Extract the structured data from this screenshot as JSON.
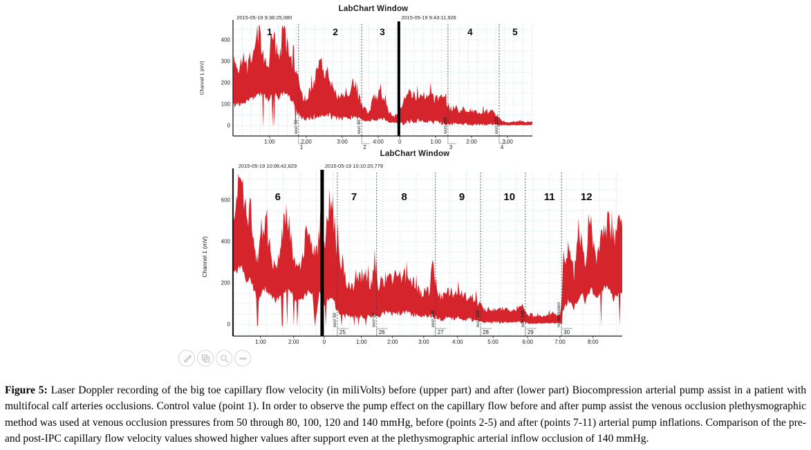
{
  "caption": {
    "label": "Figure 5:",
    "text": " Laser Doppler recording of the big toe capillary flow velocity (in miliVolts) before (upper part) and after (lower part) Biocompression arterial pump assist in a patient with multifocal calf arteries occlusions. Control value (point 1). In order to observe the pump effect on the capillary flow before and after pump assist the venous occlusion plethysmographic method was used at venous occlusion pressures  from 50 through 80, 100, 120 and 140 mmHg, before (points 2-5) and after (points 7-11) arterial pump inflations. Comparison of the pre- and post-IPC capillary flow velocity values showed higher values after support even at the plethysmographic arterial inflow occlusion of 140 mmHg."
  },
  "figure_tools": {
    "icons": [
      "edit-pencil-icon",
      "copy-figure-icon",
      "zoom-magnifier-icon",
      "more-options-icon"
    ]
  },
  "colors": {
    "trace": "#d5242c",
    "grid": "#b7dfe9",
    "divider": "#000000"
  },
  "chart_data": [
    {
      "type": "area",
      "window_title": "LabChart Window",
      "ylabel": "Channel 1 (mV)",
      "yticks": [
        0,
        100,
        200,
        300,
        400
      ],
      "ylim": [
        -48,
        474
      ],
      "grid": true,
      "timestamps": [
        {
          "x": 0.012,
          "text": "2015-05-19 9:38:25,080"
        },
        {
          "x": 0.562,
          "text": "2015-05-19 9:43:11,926"
        }
      ],
      "divider_x": 0.554,
      "xticks": [
        {
          "x": 0.122,
          "label": "1:00"
        },
        {
          "x": 0.245,
          "label": "2:00"
        },
        {
          "x": 0.365,
          "label": "3:00"
        },
        {
          "x": 0.485,
          "label": "4:00"
        },
        {
          "x": 0.557,
          "label": "0"
        },
        {
          "x": 0.677,
          "label": "1:00"
        },
        {
          "x": 0.797,
          "label": "2:00"
        },
        {
          "x": 0.917,
          "label": "3:00"
        }
      ],
      "events": [
        {
          "x": 0.219,
          "label": "occl 50",
          "marker": "1"
        },
        {
          "x": 0.43,
          "label": "occl 80",
          "marker": "2"
        },
        {
          "x": 0.718,
          "label": "occl 100",
          "marker": "3"
        },
        {
          "x": 0.889,
          "label": "occl 120",
          "marker": "4"
        }
      ],
      "sections": [
        {
          "x": 0.122,
          "label": "1"
        },
        {
          "x": 0.342,
          "label": "2"
        },
        {
          "x": 0.499,
          "label": "3"
        },
        {
          "x": 0.792,
          "label": "4"
        },
        {
          "x": 0.942,
          "label": "5"
        }
      ],
      "envelope": [
        [
          0.0,
          240,
          95
        ],
        [
          0.018,
          275,
          100
        ],
        [
          0.035,
          310,
          110
        ],
        [
          0.048,
          265,
          115
        ],
        [
          0.065,
          350,
          125
        ],
        [
          0.081,
          450,
          140
        ],
        [
          0.095,
          380,
          145
        ],
        [
          0.106,
          320,
          135
        ],
        [
          0.12,
          300,
          120
        ],
        [
          0.132,
          445,
          150
        ],
        [
          0.143,
          350,
          140
        ],
        [
          0.155,
          290,
          130
        ],
        [
          0.166,
          460,
          150
        ],
        [
          0.178,
          390,
          155
        ],
        [
          0.192,
          310,
          125
        ],
        [
          0.206,
          285,
          95
        ],
        [
          0.217,
          245,
          60
        ],
        [
          0.226,
          155,
          40
        ],
        [
          0.24,
          120,
          30
        ],
        [
          0.254,
          140,
          35
        ],
        [
          0.268,
          195,
          40
        ],
        [
          0.282,
          245,
          45
        ],
        [
          0.293,
          330,
          50
        ],
        [
          0.305,
          255,
          45
        ],
        [
          0.319,
          265,
          50
        ],
        [
          0.333,
          160,
          40
        ],
        [
          0.346,
          140,
          35
        ],
        [
          0.36,
          130,
          30
        ],
        [
          0.374,
          150,
          35
        ],
        [
          0.39,
          160,
          38
        ],
        [
          0.404,
          210,
          40
        ],
        [
          0.418,
          140,
          30
        ],
        [
          0.434,
          90,
          25
        ],
        [
          0.453,
          60,
          20
        ],
        [
          0.471,
          130,
          28
        ],
        [
          0.487,
          150,
          32
        ],
        [
          0.506,
          115,
          28
        ],
        [
          0.522,
          60,
          18
        ],
        [
          0.54,
          45,
          14
        ],
        [
          0.563,
          95,
          10
        ],
        [
          0.575,
          130,
          15
        ],
        [
          0.591,
          150,
          18
        ],
        [
          0.61,
          140,
          22
        ],
        [
          0.628,
          150,
          22
        ],
        [
          0.644,
          130,
          18
        ],
        [
          0.66,
          140,
          18
        ],
        [
          0.679,
          120,
          14
        ],
        [
          0.697,
          130,
          14
        ],
        [
          0.714,
          108,
          10
        ],
        [
          0.725,
          80,
          8
        ],
        [
          0.739,
          92,
          9
        ],
        [
          0.755,
          75,
          8
        ],
        [
          0.771,
          82,
          8
        ],
        [
          0.79,
          70,
          6
        ],
        [
          0.808,
          76,
          6
        ],
        [
          0.827,
          60,
          5
        ],
        [
          0.845,
          66,
          5
        ],
        [
          0.864,
          70,
          5
        ],
        [
          0.877,
          55,
          4
        ],
        [
          0.896,
          25,
          2
        ],
        [
          0.914,
          15,
          2
        ],
        [
          0.933,
          18,
          2
        ],
        [
          0.956,
          22,
          3
        ],
        [
          0.979,
          17,
          2
        ],
        [
          1.0,
          20,
          3
        ]
      ]
    },
    {
      "type": "area",
      "window_title": "LabChart Window",
      "ylabel": "Channel 1 (mV)",
      "yticks": [
        0,
        200,
        400,
        600
      ],
      "ylim": [
        -57,
        733
      ],
      "grid": true,
      "timestamps": [
        {
          "x": 0.014,
          "text": "2015-05-19 10:06:42,829"
        },
        {
          "x": 0.236,
          "text": "2015-05-19 10:10:20,779"
        }
      ],
      "divider_x": 0.229,
      "xticks": [
        {
          "x": 0.071,
          "label": "1:00"
        },
        {
          "x": 0.156,
          "label": "2:00"
        },
        {
          "x": 0.2345,
          "label": "0"
        },
        {
          "x": 0.33,
          "label": "1:00"
        },
        {
          "x": 0.41,
          "label": "2:00"
        },
        {
          "x": 0.49,
          "label": "3:00"
        },
        {
          "x": 0.577,
          "label": "4:00"
        },
        {
          "x": 0.668,
          "label": "5:00"
        },
        {
          "x": 0.757,
          "label": "6:00"
        },
        {
          "x": 0.84,
          "label": "7:00"
        },
        {
          "x": 0.925,
          "label": "8:00"
        }
      ],
      "events": [
        {
          "x": 0.268,
          "label": "occl 50",
          "marker": "25"
        },
        {
          "x": 0.369,
          "label": "occl 80",
          "marker": "26"
        },
        {
          "x": 0.52,
          "label": "occl 100",
          "marker": "27"
        },
        {
          "x": 0.636,
          "label": "occl 120",
          "marker": "28"
        },
        {
          "x": 0.751,
          "label": "occl 140",
          "marker": "29"
        },
        {
          "x": 0.844,
          "label": "no occlusion",
          "marker": "30"
        }
      ],
      "sections": [
        {
          "x": 0.115,
          "label": "6"
        },
        {
          "x": 0.311,
          "label": "7"
        },
        {
          "x": 0.44,
          "label": "8"
        },
        {
          "x": 0.588,
          "label": "9"
        },
        {
          "x": 0.71,
          "label": "10"
        },
        {
          "x": 0.813,
          "label": "11"
        },
        {
          "x": 0.908,
          "label": "12"
        }
      ],
      "envelope": [
        [
          0.0,
          560,
          240
        ],
        [
          0.011,
          600,
          260
        ],
        [
          0.02,
          660,
          280
        ],
        [
          0.028,
          610,
          250
        ],
        [
          0.037,
          480,
          200
        ],
        [
          0.046,
          560,
          220
        ],
        [
          0.055,
          400,
          160
        ],
        [
          0.062,
          310,
          120
        ],
        [
          0.064,
          290,
          -12
        ],
        [
          0.066,
          320,
          120
        ],
        [
          0.073,
          430,
          150
        ],
        [
          0.083,
          480,
          170
        ],
        [
          0.092,
          400,
          150
        ],
        [
          0.101,
          310,
          130
        ],
        [
          0.11,
          255,
          115
        ],
        [
          0.121,
          350,
          130
        ],
        [
          0.13,
          470,
          150
        ],
        [
          0.139,
          525,
          170
        ],
        [
          0.147,
          430,
          160
        ],
        [
          0.156,
          330,
          130
        ],
        [
          0.163,
          260,
          100
        ],
        [
          0.165,
          250,
          -12
        ],
        [
          0.168,
          300,
          110
        ],
        [
          0.176,
          300,
          115
        ],
        [
          0.185,
          420,
          140
        ],
        [
          0.195,
          465,
          160
        ],
        [
          0.204,
          380,
          140
        ],
        [
          0.211,
          300,
          -10
        ],
        [
          0.222,
          420,
          150
        ],
        [
          0.234,
          350,
          90
        ],
        [
          0.243,
          520,
          120
        ],
        [
          0.25,
          610,
          140
        ],
        [
          0.259,
          520,
          110
        ],
        [
          0.266,
          360,
          70
        ],
        [
          0.274,
          340,
          55
        ],
        [
          0.281,
          300,
          45
        ],
        [
          0.288,
          230,
          40
        ],
        [
          0.297,
          180,
          35
        ],
        [
          0.307,
          185,
          32
        ],
        [
          0.318,
          200,
          35
        ],
        [
          0.329,
          230,
          38
        ],
        [
          0.339,
          255,
          40
        ],
        [
          0.348,
          215,
          38
        ],
        [
          0.357,
          185,
          35
        ],
        [
          0.364,
          330,
          40
        ],
        [
          0.375,
          165,
          45
        ],
        [
          0.385,
          200,
          50
        ],
        [
          0.396,
          230,
          55
        ],
        [
          0.409,
          215,
          50
        ],
        [
          0.421,
          240,
          55
        ],
        [
          0.433,
          225,
          50
        ],
        [
          0.446,
          245,
          55
        ],
        [
          0.458,
          215,
          50
        ],
        [
          0.471,
          185,
          45
        ],
        [
          0.483,
          150,
          40
        ],
        [
          0.496,
          170,
          42
        ],
        [
          0.506,
          150,
          38
        ],
        [
          0.513,
          290,
          40
        ],
        [
          0.526,
          160,
          30
        ],
        [
          0.536,
          130,
          25
        ],
        [
          0.547,
          150,
          28
        ],
        [
          0.56,
          160,
          30
        ],
        [
          0.57,
          140,
          26
        ],
        [
          0.583,
          155,
          28
        ],
        [
          0.595,
          130,
          24
        ],
        [
          0.607,
          145,
          25
        ],
        [
          0.62,
          120,
          20
        ],
        [
          0.631,
          105,
          18
        ],
        [
          0.641,
          80,
          12
        ],
        [
          0.654,
          65,
          10
        ],
        [
          0.666,
          75,
          11
        ],
        [
          0.68,
          68,
          10
        ],
        [
          0.694,
          78,
          11
        ],
        [
          0.709,
          65,
          9
        ],
        [
          0.723,
          72,
          10
        ],
        [
          0.735,
          80,
          11
        ],
        [
          0.746,
          100,
          12
        ],
        [
          0.757,
          45,
          6
        ],
        [
          0.769,
          38,
          5
        ],
        [
          0.783,
          42,
          6
        ],
        [
          0.797,
          36,
          5
        ],
        [
          0.812,
          48,
          6
        ],
        [
          0.822,
          55,
          7
        ],
        [
          0.833,
          45,
          6
        ],
        [
          0.84,
          40,
          5
        ],
        [
          0.845,
          120,
          10
        ],
        [
          0.847,
          320,
          60
        ],
        [
          0.854,
          280,
          90
        ],
        [
          0.861,
          380,
          120
        ],
        [
          0.868,
          300,
          100
        ],
        [
          0.876,
          240,
          80
        ],
        [
          0.883,
          350,
          110
        ],
        [
          0.89,
          420,
          140
        ],
        [
          0.897,
          380,
          150
        ],
        [
          0.904,
          300,
          110
        ],
        [
          0.913,
          450,
          140
        ],
        [
          0.92,
          480,
          170
        ],
        [
          0.927,
          400,
          150
        ],
        [
          0.934,
          310,
          120
        ],
        [
          0.941,
          360,
          130
        ],
        [
          0.948,
          440,
          160
        ],
        [
          0.957,
          470,
          180
        ],
        [
          0.964,
          500,
          170
        ],
        [
          0.971,
          430,
          150
        ],
        [
          0.978,
          350,
          110
        ],
        [
          0.986,
          460,
          140
        ],
        [
          0.993,
          510,
          160
        ],
        [
          1.0,
          470,
          150
        ]
      ]
    }
  ]
}
